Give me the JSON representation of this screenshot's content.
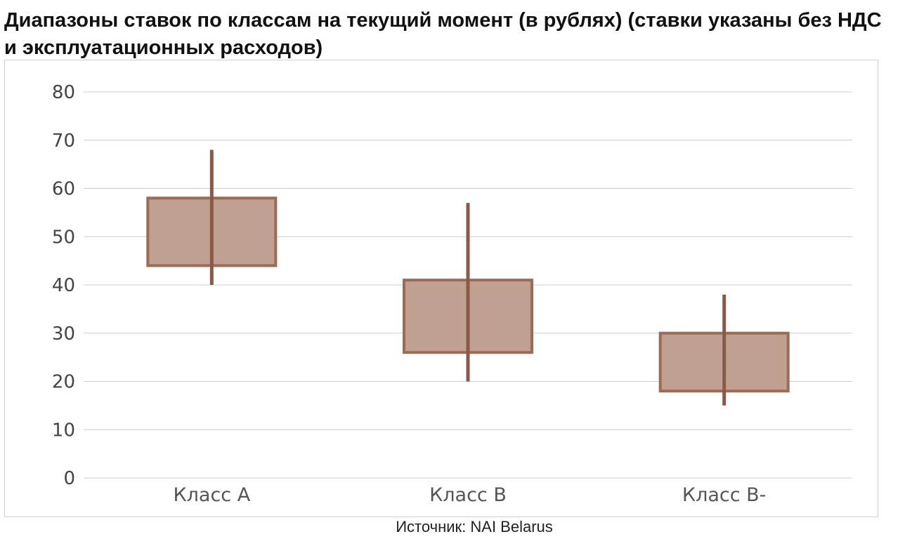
{
  "chart_data": {
    "type": "box",
    "title": "Диапазоны ставок по классам на текущий момент (в рублях) (ставки указаны без НДС и эксплуатационных расходов)",
    "source": "Источник: NAI Belarus",
    "categories": [
      "Класс А",
      "Класс В",
      "Класс В-"
    ],
    "series": [
      {
        "low": [
          40,
          20,
          15
        ],
        "box_low": [
          44,
          26,
          18
        ],
        "box_high": [
          58,
          41,
          30
        ],
        "high": [
          68,
          57,
          38
        ]
      }
    ],
    "ylim": [
      0,
      80
    ],
    "y_ticks": [
      0,
      10,
      20,
      30,
      40,
      50,
      60,
      70,
      80
    ],
    "grid": true,
    "colors": {
      "box_fill": "#c0a091",
      "box_stroke": "#9c6a55",
      "whisker": "#8a5a48",
      "grid": "#cccccc"
    }
  }
}
